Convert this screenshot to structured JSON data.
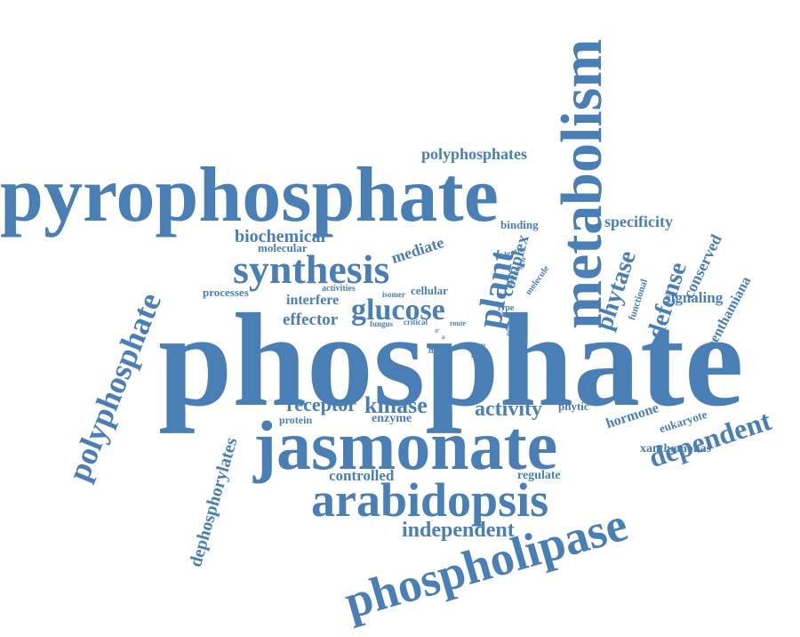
{
  "color": "#4a7fb5",
  "words": [
    "phosphate",
    "pyrophosphate",
    "metabolism",
    "jasmonate",
    "phospholipase",
    "synthesis",
    "arabidopsis",
    "polyphosphate",
    "plant",
    "dependent",
    "glucose",
    "phytase",
    "defense",
    "kinase",
    "activity",
    "independent",
    "biochemical",
    "polyphosphates",
    "dephosphorylates",
    "receptor",
    "complex",
    "effector",
    "mediate",
    "conserved",
    "specificity",
    "signaling",
    "benthamiana",
    "hormone",
    "controlled",
    "xanthomonas",
    "regulate",
    "eukaryote",
    "interfere",
    "cellular",
    "binding",
    "phytic",
    "functional",
    "processes",
    "molecular",
    "protein",
    "enzyme",
    "activities",
    "isomer",
    "pathogen",
    "molecule",
    "identity",
    "type",
    "induction",
    "fungus",
    "critical",
    "route",
    "have",
    "role",
    "insp",
    "most",
    "report",
    "ifs",
    "sp"
  ]
}
